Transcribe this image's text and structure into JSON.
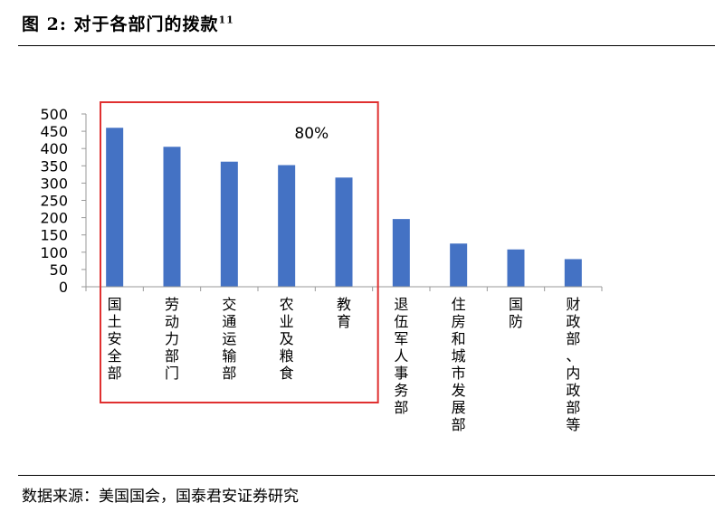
{
  "figure": {
    "title_main": "图 2:  对于各部门的拨款",
    "title_sup": "11",
    "source": "数据来源：美国国会，国泰君安证券研究"
  },
  "chart_data": {
    "type": "bar",
    "categories": [
      "国土安全部",
      "劳动力部门",
      "交通运输部",
      "农业及粮食",
      "教育",
      "退伍军人事务部",
      "住房和城市发展部",
      "国防",
      "财政部、内政部等"
    ],
    "values": [
      460,
      405,
      362,
      352,
      316,
      196,
      125,
      108,
      80
    ],
    "yticks": [
      0,
      50,
      100,
      150,
      200,
      250,
      300,
      350,
      400,
      450,
      500
    ],
    "ylim": [
      0,
      500
    ],
    "bar_color": "#4472C4",
    "highlight": {
      "label": "80%",
      "color": "#E03030",
      "from_index": 0,
      "to_index": 4
    },
    "grid": false,
    "legend": "none"
  }
}
